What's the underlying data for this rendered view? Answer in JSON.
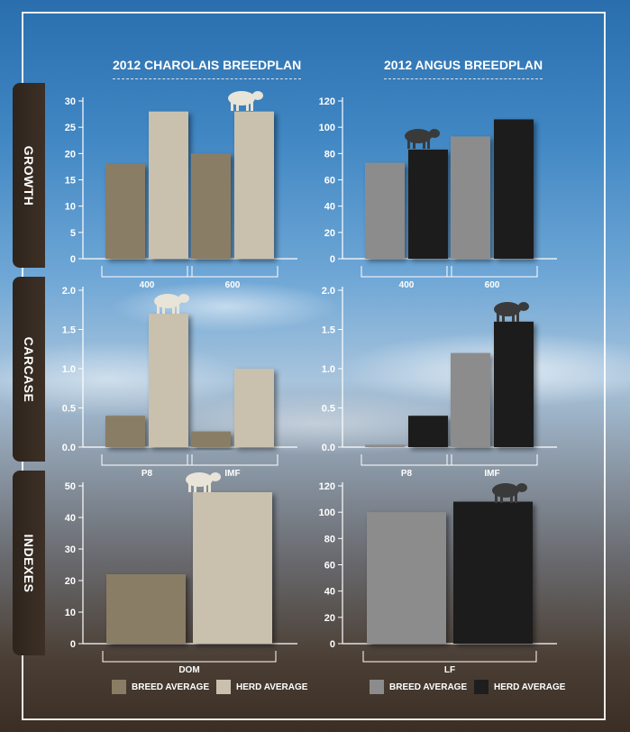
{
  "titles": {
    "left": "2012 CHAROLAIS BREEDPLAN",
    "right": "2012 ANGUS BREEDPLAN"
  },
  "side_tabs": [
    "GROWTH",
    "CARCASE",
    "INDEXES"
  ],
  "legend": [
    {
      "label": "BREED AVERAGE",
      "color": "#8a7d66"
    },
    {
      "label": "HERD AVERAGE",
      "color": "#c9c1ae"
    },
    {
      "label": "BREED AVERAGE",
      "color": "#8c8c8c"
    },
    {
      "label": "HERD AVERAGE",
      "color": "#1e1e1e"
    }
  ],
  "colors": {
    "char_breed": "#8a7d66",
    "char_herd": "#c9c1ae",
    "angus_breed": "#8c8c8c",
    "angus_herd": "#1e1e1e"
  },
  "chart_data": [
    {
      "type": "bar",
      "id": "charolais-growth",
      "categories": [
        "400",
        "600"
      ],
      "series": [
        {
          "name": "BREED AVERAGE",
          "values": [
            18,
            20
          ]
        },
        {
          "name": "HERD AVERAGE",
          "values": [
            28,
            28
          ]
        }
      ],
      "ylim": [
        0,
        30
      ],
      "yticks": [
        0,
        5,
        10,
        15,
        20,
        25,
        30
      ],
      "tick_format": "int"
    },
    {
      "type": "bar",
      "id": "angus-growth",
      "categories": [
        "400",
        "600"
      ],
      "series": [
        {
          "name": "BREED AVERAGE",
          "values": [
            73,
            93
          ]
        },
        {
          "name": "HERD AVERAGE",
          "values": [
            83,
            106
          ]
        }
      ],
      "ylim": [
        0,
        120
      ],
      "yticks": [
        0,
        20,
        40,
        60,
        80,
        100,
        120
      ],
      "tick_format": "int"
    },
    {
      "type": "bar",
      "id": "charolais-carcase",
      "categories": [
        "P8",
        "IMF"
      ],
      "series": [
        {
          "name": "BREED AVERAGE",
          "values": [
            0.4,
            0.2
          ]
        },
        {
          "name": "HERD AVERAGE",
          "values": [
            1.7,
            1.0
          ]
        }
      ],
      "ylim": [
        0,
        2.0
      ],
      "yticks": [
        0,
        0.5,
        1.0,
        1.5,
        2.0
      ],
      "tick_format": "1dp"
    },
    {
      "type": "bar",
      "id": "angus-carcase",
      "categories": [
        "P8",
        "IMF"
      ],
      "series": [
        {
          "name": "BREED AVERAGE",
          "values": [
            0.03,
            1.2
          ]
        },
        {
          "name": "HERD AVERAGE",
          "values": [
            0.4,
            1.6
          ]
        }
      ],
      "ylim": [
        0,
        2.0
      ],
      "yticks": [
        0,
        0.5,
        1.0,
        1.5,
        2.0
      ],
      "tick_format": "1dp"
    },
    {
      "type": "bar",
      "id": "charolais-indexes",
      "categories": [
        "DOM"
      ],
      "series": [
        {
          "name": "BREED AVERAGE",
          "values": [
            22
          ]
        },
        {
          "name": "HERD AVERAGE",
          "values": [
            48
          ]
        }
      ],
      "ylim": [
        0,
        50
      ],
      "yticks": [
        0,
        10,
        20,
        30,
        40,
        50
      ],
      "tick_format": "int"
    },
    {
      "type": "bar",
      "id": "angus-indexes",
      "categories": [
        "LF"
      ],
      "series": [
        {
          "name": "BREED AVERAGE",
          "values": [
            100
          ]
        },
        {
          "name": "HERD AVERAGE",
          "values": [
            108
          ]
        }
      ],
      "ylim": [
        0,
        120
      ],
      "yticks": [
        0,
        20,
        40,
        60,
        80,
        100,
        120
      ],
      "tick_format": "int"
    }
  ]
}
